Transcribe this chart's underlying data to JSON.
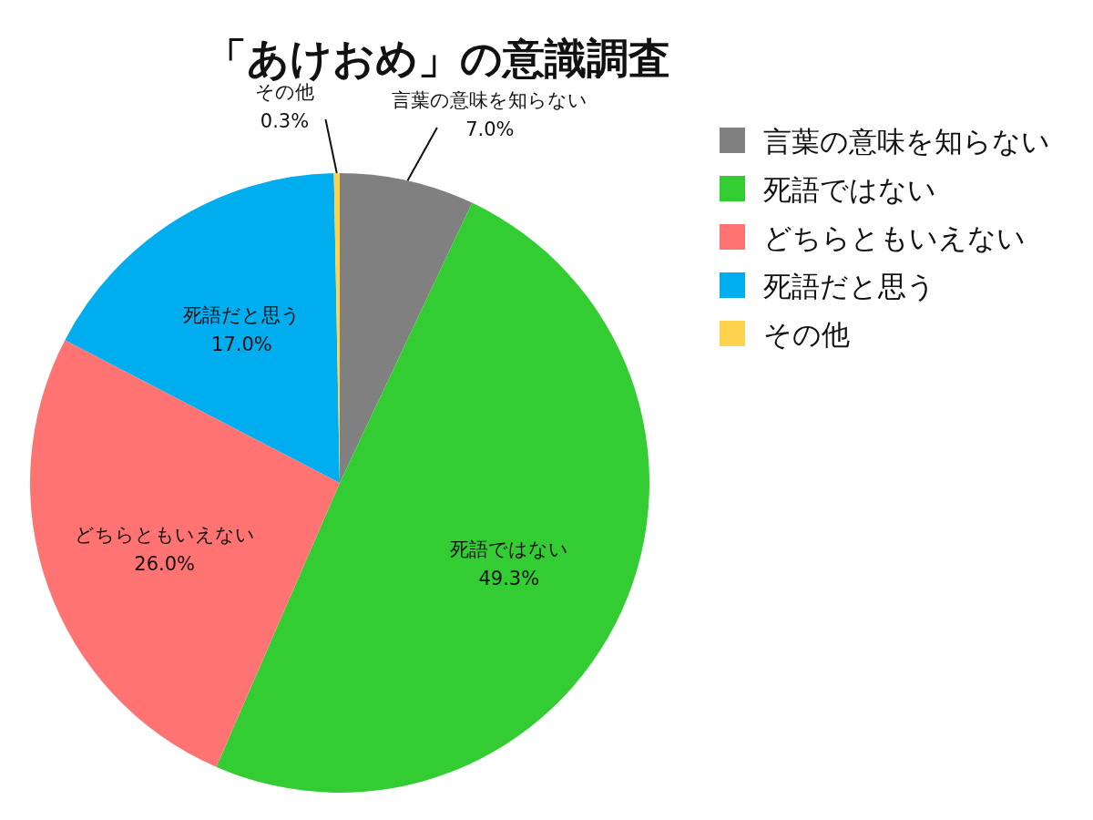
{
  "chart_data": {
    "type": "pie",
    "title": "「あけおめ」の意識調査",
    "categories": [
      "言葉の意味を知らない",
      "死語ではない",
      "どちらともいえない",
      "死語だと思う",
      "その他"
    ],
    "values": [
      7.0,
      49.3,
      26.0,
      17.0,
      0.3
    ],
    "colors": [
      "#808080",
      "#33cc33",
      "#ff7373",
      "#00adef",
      "#ffd24d"
    ],
    "value_labels": [
      "7.0%",
      "49.3%",
      "26.0%",
      "17.0%",
      "0.3%"
    ],
    "legend": "right"
  }
}
